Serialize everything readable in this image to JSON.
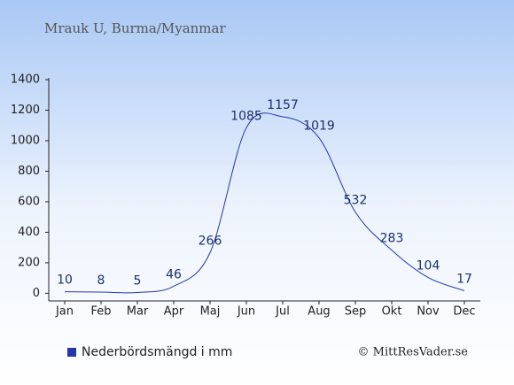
{
  "chart_data": {
    "type": "line",
    "title": "Mrauk U, Burma/Myanmar",
    "categories": [
      "Jan",
      "Feb",
      "Mar",
      "Apr",
      "Maj",
      "Jun",
      "Jul",
      "Aug",
      "Sep",
      "Okt",
      "Nov",
      "Dec"
    ],
    "series": [
      {
        "name": "Nederbördsmängd i mm",
        "color": "#2438a8",
        "values": [
          10,
          8,
          5,
          46,
          266,
          1085,
          1157,
          1019,
          532,
          283,
          104,
          17
        ]
      }
    ],
    "ylim": [
      -50,
      1400
    ],
    "yticks": [
      0,
      200,
      400,
      600,
      800,
      1000,
      1200,
      1400
    ],
    "grid": false,
    "legend": "bottom-left",
    "credit": "© MittResVader.se"
  }
}
